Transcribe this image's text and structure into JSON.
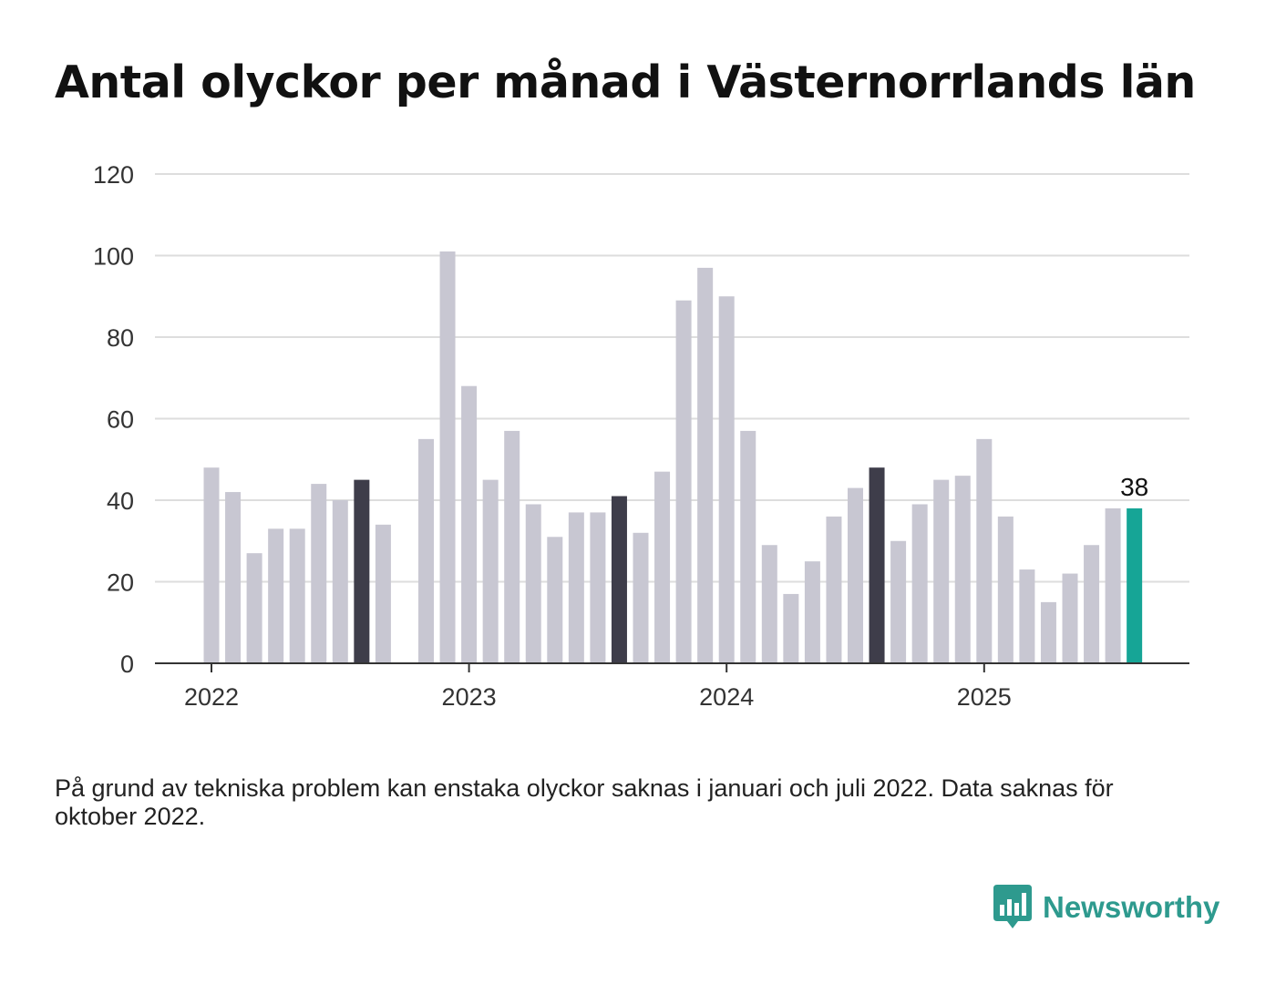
{
  "chart_data": {
    "type": "bar",
    "title": "Antal olyckor per månad i Västernorrlands län",
    "ylim": [
      0,
      120
    ],
    "yticks": [
      0,
      20,
      40,
      60,
      80,
      100,
      120
    ],
    "xticks": [
      "2022",
      "2023",
      "2024",
      "2025"
    ],
    "grid": true,
    "categories": [
      "2022-01",
      "2022-02",
      "2022-03",
      "2022-04",
      "2022-05",
      "2022-06",
      "2022-07",
      "2022-08",
      "2022-09",
      "2022-10",
      "2022-11",
      "2022-12",
      "2023-01",
      "2023-02",
      "2023-03",
      "2023-04",
      "2023-05",
      "2023-06",
      "2023-07",
      "2023-08",
      "2023-09",
      "2023-10",
      "2023-11",
      "2023-12",
      "2024-01",
      "2024-02",
      "2024-03",
      "2024-04",
      "2024-05",
      "2024-06",
      "2024-07",
      "2024-08",
      "2024-09",
      "2024-10",
      "2024-11",
      "2024-12",
      "2025-01",
      "2025-02",
      "2025-03",
      "2025-04",
      "2025-05",
      "2025-06",
      "2025-07",
      "2025-08"
    ],
    "values": [
      48,
      42,
      27,
      33,
      33,
      44,
      40,
      45,
      34,
      null,
      55,
      101,
      68,
      45,
      57,
      39,
      31,
      37,
      37,
      41,
      32,
      47,
      89,
      97,
      90,
      57,
      29,
      17,
      25,
      36,
      43,
      48,
      30,
      39,
      45,
      46,
      55,
      36,
      23,
      15,
      22,
      29,
      38,
      38
    ],
    "highlight_months": [
      "2022-08",
      "2023-08",
      "2024-08"
    ],
    "current_month": "2025-08",
    "value_label": "38",
    "colors": {
      "default": "#c8c7d2",
      "highlight": "#3e3d4a",
      "current": "#16a596",
      "grid": "#dddddd",
      "axis": "#333333"
    }
  },
  "footnote": "På grund av tekniska problem kan enstaka olyckor saknas i januari och juli 2022. Data saknas för oktober 2022.",
  "logo": {
    "text": "Newsworthy",
    "icon": "bar-chart-speech-bubble-icon",
    "color": "#2e9a8e"
  }
}
